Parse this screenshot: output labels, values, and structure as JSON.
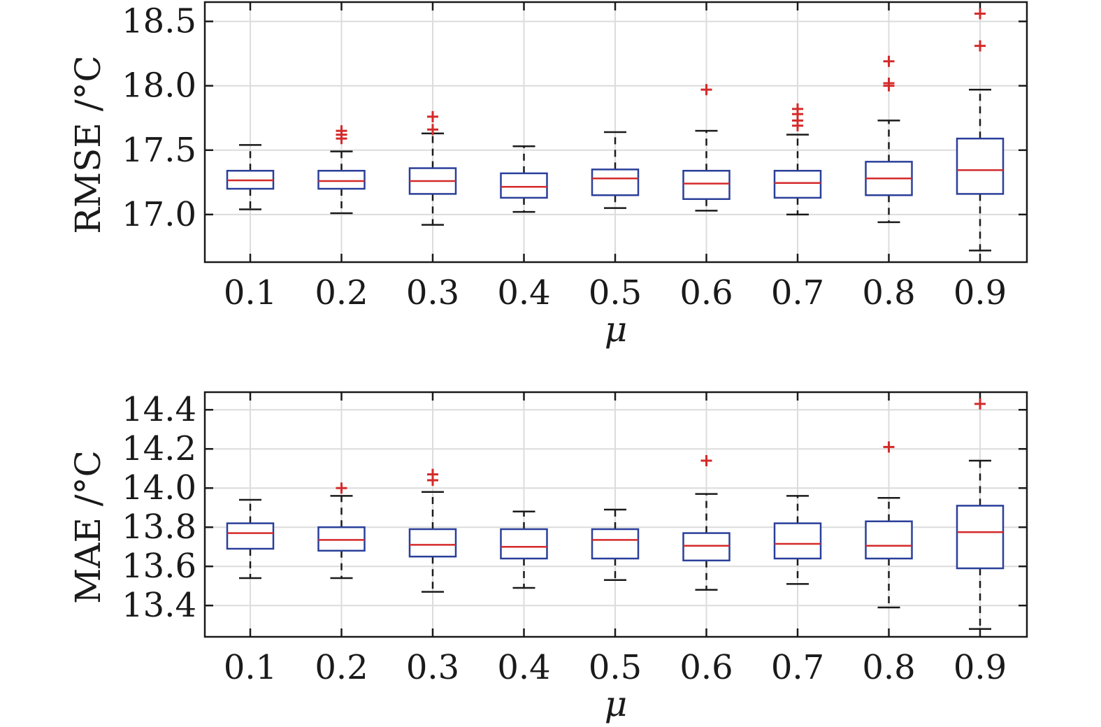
{
  "colors": {
    "box": "#2a3f9a",
    "median": "#d42a2a",
    "outlier": "#d42a2a",
    "whisker": "#1a1a1a",
    "grid": "#dcdcdc",
    "axis": "#1a1a1a"
  },
  "chart_data": [
    {
      "type": "box",
      "xlabel": "μ",
      "ylabel": "RMSE /°C",
      "ylim": [
        16.63,
        18.65
      ],
      "yticks": [
        17.0,
        17.5,
        18.0,
        18.5
      ],
      "ytick_labels": [
        "17.0",
        "17.5",
        "18.0",
        "18.5"
      ],
      "grid": true,
      "categories": [
        "0.1",
        "0.2",
        "0.3",
        "0.4",
        "0.5",
        "0.6",
        "0.7",
        "0.8",
        "0.9"
      ],
      "boxes": [
        {
          "whisker_low": 17.04,
          "q1": 17.2,
          "median": 17.265,
          "q3": 17.34,
          "whisker_high": 17.54,
          "outliers": []
        },
        {
          "whisker_low": 17.01,
          "q1": 17.2,
          "median": 17.26,
          "q3": 17.34,
          "whisker_high": 17.49,
          "outliers": [
            17.59,
            17.62,
            17.65
          ]
        },
        {
          "whisker_low": 16.92,
          "q1": 17.16,
          "median": 17.26,
          "q3": 17.36,
          "whisker_high": 17.63,
          "outliers": [
            17.66,
            17.76
          ]
        },
        {
          "whisker_low": 17.02,
          "q1": 17.13,
          "median": 17.215,
          "q3": 17.32,
          "whisker_high": 17.53,
          "outliers": []
        },
        {
          "whisker_low": 17.05,
          "q1": 17.15,
          "median": 17.28,
          "q3": 17.35,
          "whisker_high": 17.64,
          "outliers": []
        },
        {
          "whisker_low": 17.03,
          "q1": 17.12,
          "median": 17.24,
          "q3": 17.34,
          "whisker_high": 17.65,
          "outliers": [
            17.97
          ]
        },
        {
          "whisker_low": 17.0,
          "q1": 17.13,
          "median": 17.245,
          "q3": 17.34,
          "whisker_high": 17.62,
          "outliers": [
            17.69,
            17.73,
            17.78,
            17.82
          ]
        },
        {
          "whisker_low": 16.94,
          "q1": 17.15,
          "median": 17.28,
          "q3": 17.41,
          "whisker_high": 17.73,
          "outliers": [
            18.0,
            18.02,
            18.19
          ]
        },
        {
          "whisker_low": 16.72,
          "q1": 17.16,
          "median": 17.345,
          "q3": 17.59,
          "whisker_high": 17.97,
          "outliers": [
            18.31,
            18.56
          ]
        }
      ]
    },
    {
      "type": "box",
      "xlabel": "μ",
      "ylabel": "MAE /°C",
      "ylim": [
        13.24,
        14.49
      ],
      "yticks": [
        13.4,
        13.6,
        13.8,
        14.0,
        14.2,
        14.4
      ],
      "ytick_labels": [
        "13.4",
        "13.6",
        "13.8",
        "14.0",
        "14.2",
        "14.4"
      ],
      "grid": true,
      "categories": [
        "0.1",
        "0.2",
        "0.3",
        "0.4",
        "0.5",
        "0.6",
        "0.7",
        "0.8",
        "0.9"
      ],
      "boxes": [
        {
          "whisker_low": 13.54,
          "q1": 13.69,
          "median": 13.77,
          "q3": 13.82,
          "whisker_high": 13.94,
          "outliers": []
        },
        {
          "whisker_low": 13.54,
          "q1": 13.68,
          "median": 13.735,
          "q3": 13.8,
          "whisker_high": 13.96,
          "outliers": [
            14.0
          ]
        },
        {
          "whisker_low": 13.47,
          "q1": 13.65,
          "median": 13.71,
          "q3": 13.79,
          "whisker_high": 13.98,
          "outliers": [
            14.04,
            14.07
          ]
        },
        {
          "whisker_low": 13.49,
          "q1": 13.64,
          "median": 13.7,
          "q3": 13.79,
          "whisker_high": 13.88,
          "outliers": []
        },
        {
          "whisker_low": 13.53,
          "q1": 13.64,
          "median": 13.735,
          "q3": 13.79,
          "whisker_high": 13.89,
          "outliers": []
        },
        {
          "whisker_low": 13.48,
          "q1": 13.63,
          "median": 13.705,
          "q3": 13.77,
          "whisker_high": 13.97,
          "outliers": [
            14.14
          ]
        },
        {
          "whisker_low": 13.51,
          "q1": 13.64,
          "median": 13.715,
          "q3": 13.82,
          "whisker_high": 13.96,
          "outliers": []
        },
        {
          "whisker_low": 13.39,
          "q1": 13.64,
          "median": 13.705,
          "q3": 13.83,
          "whisker_high": 13.95,
          "outliers": [
            14.21
          ]
        },
        {
          "whisker_low": 13.28,
          "q1": 13.59,
          "median": 13.775,
          "q3": 13.91,
          "whisker_high": 14.14,
          "outliers": [
            14.43
          ]
        }
      ]
    }
  ]
}
